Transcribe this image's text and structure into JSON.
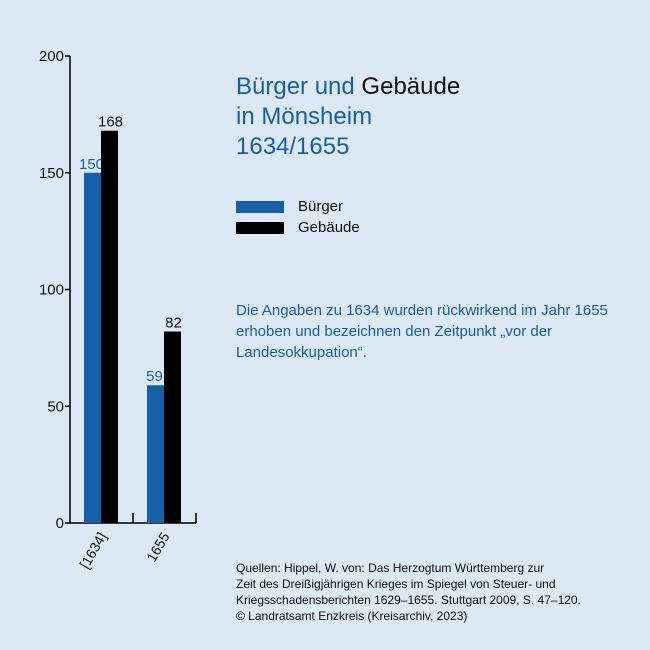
{
  "title": {
    "line1_blue": "Bürger und",
    "line1_black": "Gebäude",
    "line2": "in Mönsheim",
    "line3": "1634/1655"
  },
  "legend": [
    {
      "label": "Bürger",
      "color": "#1560a8"
    },
    {
      "label": "Gebäude",
      "color": "#000000"
    }
  ],
  "note": "Die Angaben zu 1634 wurden rückwirkend im Jahr 1655 erhoben und bezeichnen den Zeitpunkt „vor der Landesokkupation“.",
  "source_lines": [
    "Quellen: Hippel, W. von: Das Herzogtum Württemberg zur",
    "Zeit des Dreißigjährigen Krieges im Spiegel von Steuer- und",
    "Kriegsschadensberichten 1629–1655. Stuttgart 2009, S. 47–120.",
    "© Landratsamt Enzkreis (Kreisarchiv, 2023)"
  ],
  "chart_data": {
    "type": "bar",
    "categories": [
      "[1634]",
      "1655"
    ],
    "series": [
      {
        "name": "Bürger",
        "values": [
          150,
          59
        ],
        "color": "#1560a8"
      },
      {
        "name": "Gebäude",
        "values": [
          168,
          82
        ],
        "color": "#000000"
      }
    ],
    "ylim": [
      0,
      200
    ],
    "yticks": [
      0,
      50,
      100,
      150,
      200
    ],
    "grid": false,
    "legend": "right"
  }
}
